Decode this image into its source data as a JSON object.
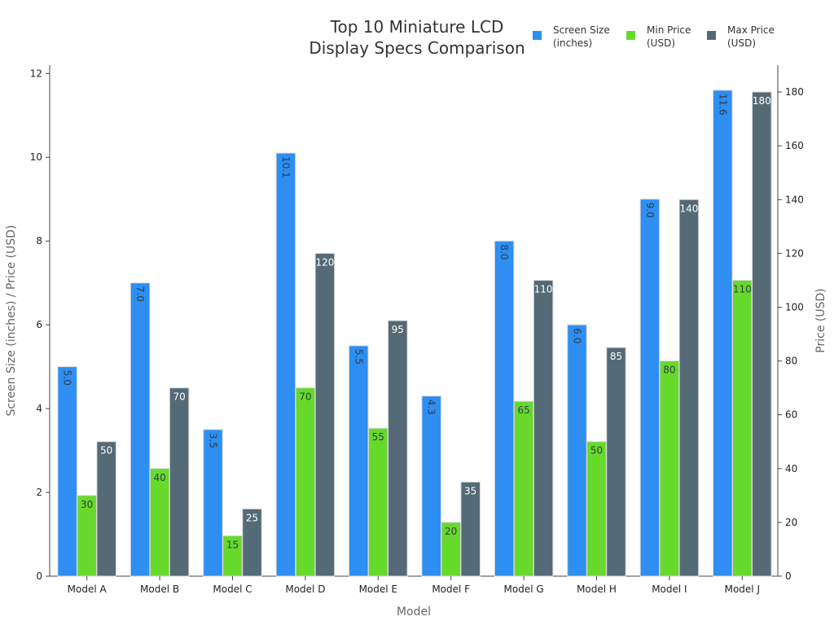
{
  "chart_data": {
    "type": "bar",
    "title_lines": [
      "Top 10 Miniature LCD",
      "Display Specs Comparison"
    ],
    "xlabel": "Model",
    "ylabel_left": "Screen Size (inches) / Price (USD)",
    "ylabel_right": "Price (USD)",
    "categories": [
      "Model A",
      "Model B",
      "Model C",
      "Model D",
      "Model E",
      "Model F",
      "Model G",
      "Model H",
      "Model I",
      "Model J"
    ],
    "series": [
      {
        "name": "Screen Size (inches)",
        "legend_lines": [
          "Screen Size",
          "(inches)"
        ],
        "axis": "left",
        "color": "#2e8ef2",
        "label_color": "#2f3e4a",
        "label_rotated": true,
        "values": [
          5.0,
          7.0,
          3.5,
          10.1,
          5.5,
          4.3,
          8.0,
          6.0,
          9.0,
          11.6
        ]
      },
      {
        "name": "Min Price (USD)",
        "legend_lines": [
          "Min Price",
          "(USD)"
        ],
        "axis": "right",
        "color": "#66d92b",
        "label_color": "#2f3e4a",
        "label_rotated": false,
        "values": [
          30,
          40,
          15,
          70,
          55,
          20,
          65,
          50,
          80,
          110
        ]
      },
      {
        "name": "Max Price (USD)",
        "legend_lines": [
          "Max Price",
          "(USD)"
        ],
        "axis": "right",
        "color": "#546a76",
        "label_color": "#ffffff",
        "label_rotated": false,
        "values": [
          50,
          70,
          25,
          120,
          95,
          35,
          110,
          85,
          140,
          180
        ]
      }
    ],
    "ylim_left": [
      0,
      12.2
    ],
    "yticks_left": [
      0,
      2,
      4,
      6,
      8,
      10,
      12
    ],
    "ylim_right": [
      0,
      190
    ],
    "yticks_right": [
      0,
      20,
      40,
      60,
      80,
      100,
      120,
      140,
      160,
      180
    ],
    "grid": false,
    "legend_position": "top-right"
  }
}
